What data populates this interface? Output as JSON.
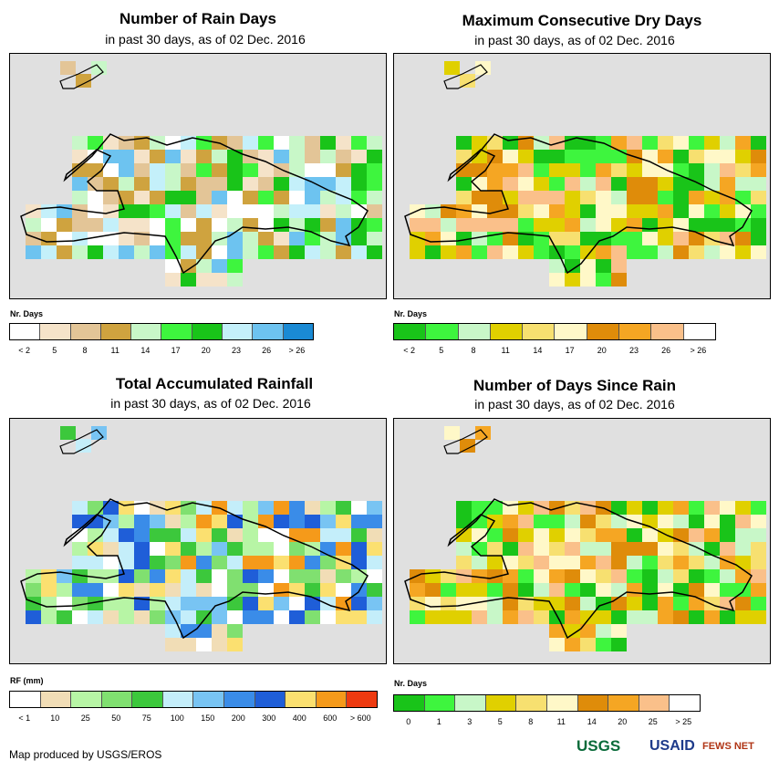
{
  "footer": {
    "credit": "Map produced by USGS/EROS"
  },
  "logos": {
    "usgs": "USGS",
    "usaid": "USAID",
    "fews": "FEWS NET"
  },
  "chart_data": [
    {
      "type": "heatmap",
      "title": "Number of Rain Days",
      "subtitle": "in past 30 days, as of 02 Dec. 2016",
      "legend_title": "Nr. Days",
      "legend_labels": [
        "< 2",
        "5",
        "8",
        "11",
        "14",
        "17",
        "20",
        "23",
        "26",
        "> 26"
      ],
      "legend_colors": [
        "#ffffff",
        "#f5e3c9",
        "#e3c597",
        "#cfa33f",
        "#c8f7c8",
        "#3ef53e",
        "#19c419",
        "#c4f0fa",
        "#6dc3f0",
        "#1a8ad4"
      ]
    },
    {
      "type": "heatmap",
      "title": "Maximum Consecutive Dry Days",
      "subtitle": "in past 30 days, as of 02 Dec. 2016",
      "legend_title": "Nr. Days",
      "legend_labels": [
        "< 2",
        "5",
        "8",
        "11",
        "14",
        "17",
        "20",
        "23",
        "26",
        "> 26"
      ],
      "legend_colors": [
        "#19c419",
        "#3ef53e",
        "#c8f7c8",
        "#e0d000",
        "#f7e070",
        "#fff8c8",
        "#df8c0a",
        "#f5a623",
        "#fac08a",
        "#ffffff"
      ]
    },
    {
      "type": "heatmap",
      "title": "Total Accumulated Rainfall",
      "subtitle": "in past 30 days, as of 02 Dec. 2016",
      "legend_title": "RF (mm)",
      "legend_labels": [
        "< 1",
        "10",
        "25",
        "50",
        "75",
        "100",
        "150",
        "200",
        "300",
        "400",
        "600",
        "> 600"
      ],
      "legend_colors": [
        "#ffffff",
        "#f1ddb6",
        "#b7f5a5",
        "#80e070",
        "#3cc83c",
        "#c4eefa",
        "#78c4f3",
        "#3a8ce8",
        "#1f5ed8",
        "#fbe070",
        "#f59a1a",
        "#ee3a10"
      ]
    },
    {
      "type": "heatmap",
      "title": "Number of Days Since Rain",
      "subtitle": "in past 30 days, as of 02 Dec. 2016",
      "legend_title": "Nr. Days",
      "legend_labels": [
        "0",
        "1",
        "3",
        "5",
        "8",
        "11",
        "14",
        "20",
        "25",
        "> 25"
      ],
      "legend_colors": [
        "#19c419",
        "#3ef53e",
        "#c8f7c8",
        "#e0d000",
        "#f7e070",
        "#fff8c8",
        "#df8c0a",
        "#f5a623",
        "#fac08a",
        "#ffffff"
      ]
    }
  ]
}
